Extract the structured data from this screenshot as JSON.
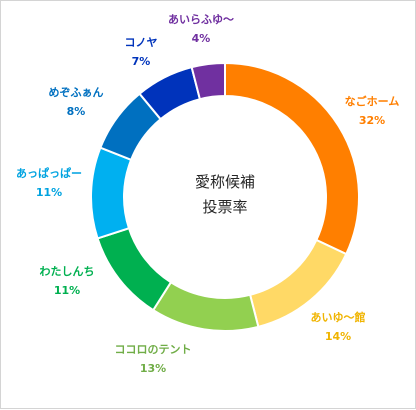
{
  "chart_data": {
    "type": "pie",
    "style": "donut",
    "title_lines": [
      "愛称候補",
      "投票率"
    ],
    "unit": "%",
    "slices": [
      {
        "label": "なごホーム",
        "value": 32,
        "value_label": "32%",
        "color": "#FF7F00"
      },
      {
        "label": "あいゆ～館",
        "value": 14,
        "value_label": "14%",
        "color": "#FFD966"
      },
      {
        "label": "ココロのテント",
        "value": 13,
        "value_label": "13%",
        "color": "#92D050"
      },
      {
        "label": "わたしんち",
        "value": 11,
        "value_label": "11%",
        "color": "#00B050"
      },
      {
        "label": "あっぱっぱー",
        "value": 11,
        "value_label": "11%",
        "color": "#00B0F0"
      },
      {
        "label": "めぞふぁん",
        "value": 8,
        "value_label": "8%",
        "color": "#0070C0"
      },
      {
        "label": "コノヤ",
        "value": 7,
        "value_label": "7%",
        "color": "#0033BB"
      },
      {
        "label": "あいらふゆ～",
        "value": 4,
        "value_label": "4%",
        "color": "#7030A0"
      }
    ],
    "label_colors": [
      "#FF7F00",
      "#F0B400",
      "#70AD47",
      "#00B050",
      "#00A3E0",
      "#0070C0",
      "#0033BB",
      "#7030A0"
    ],
    "legend": "none"
  }
}
